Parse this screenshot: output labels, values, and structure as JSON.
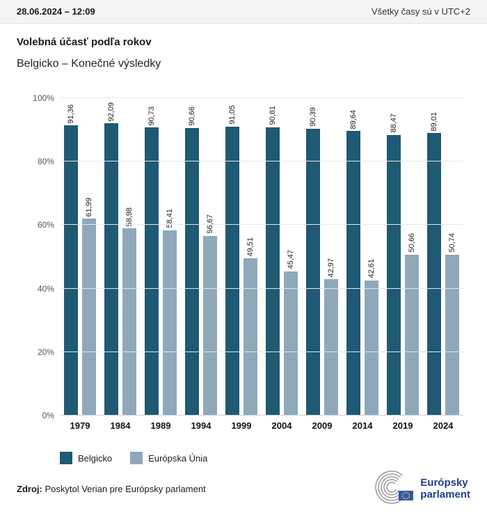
{
  "header": {
    "datetime": "28.06.2024 – 12:09",
    "timezone_note": "Všetky časy sú v UTC+2"
  },
  "title": "Volebná účasť podľa rokov",
  "subtitle": "Belgicko – Konečné výsledky",
  "chart_data": {
    "type": "bar",
    "title": "Volebná účasť podľa rokov",
    "subtitle": "Belgicko – Konečné výsledky",
    "categories": [
      "1979",
      "1984",
      "1989",
      "1994",
      "1999",
      "2004",
      "2009",
      "2014",
      "2019",
      "2024"
    ],
    "series": [
      {
        "name": "Belgicko",
        "color": "#1f5973",
        "values": [
          91.36,
          92.09,
          90.73,
          90.66,
          91.05,
          90.81,
          90.39,
          89.64,
          88.47,
          89.01
        ]
      },
      {
        "name": "Európska Únia",
        "color": "#8fa8ba",
        "values": [
          61.99,
          58.98,
          58.41,
          56.67,
          49.51,
          45.47,
          42.97,
          42.61,
          50.66,
          50.74
        ]
      }
    ],
    "ylim": [
      0,
      100
    ],
    "yticks": [
      0,
      20,
      40,
      60,
      80,
      100
    ],
    "ytick_suffix": "%",
    "grid": true,
    "legend_position": "bottom",
    "decimal_separator": ",",
    "value_labels": "rotated-above-bars"
  },
  "footer": {
    "source_label": "Zdroj:",
    "source_text": "Poskytol Verian pre Európsky parlament"
  },
  "logo": {
    "line1": "Európsky",
    "line2": "parlament",
    "flag_color": "#2d5ba9",
    "star_color": "#ffd617",
    "text_color": "#1e3f8f"
  }
}
